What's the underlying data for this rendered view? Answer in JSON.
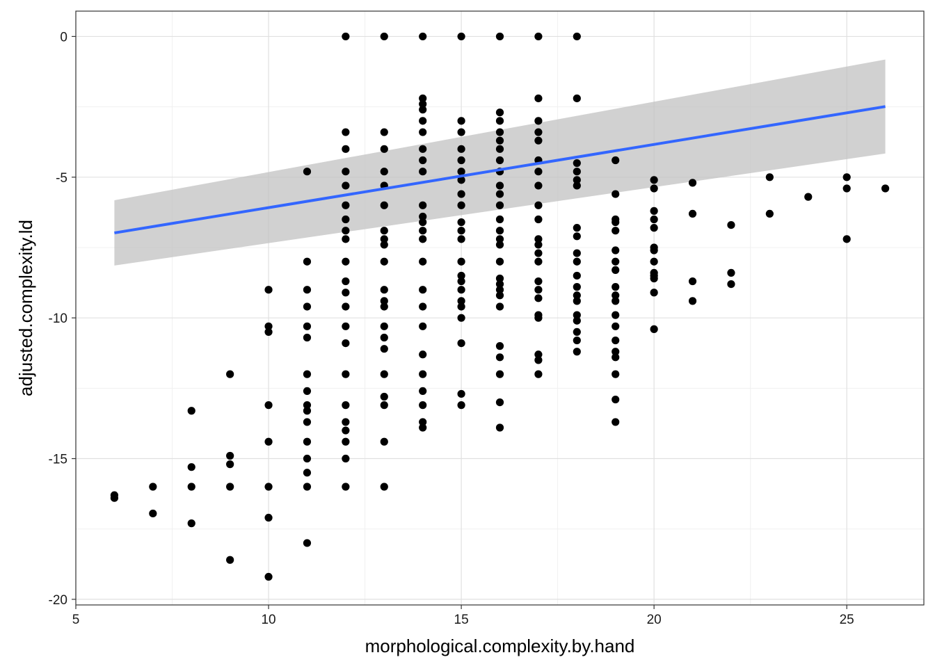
{
  "chart_data": {
    "type": "scatter",
    "title": "",
    "xlabel": "morphological.complexity.by.hand",
    "ylabel": "adjusted.complexity.ld",
    "xlim": [
      5,
      27
    ],
    "ylim": [
      -20.2,
      0.9
    ],
    "x_ticks": [
      5,
      10,
      15,
      20,
      25
    ],
    "x_tick_labels": [
      "5",
      "10",
      "15",
      "20",
      "25"
    ],
    "y_ticks": [
      0,
      -5,
      -10,
      -15,
      -20
    ],
    "y_tick_labels": [
      "0",
      "-5",
      "-10",
      "-15",
      "-20"
    ],
    "grid": true,
    "theme": "bw",
    "colors": {
      "points": "#000000",
      "fit_line": "#3366ff",
      "confidence_band": "#bfbfbf",
      "grid_major": "#e0e0e0",
      "grid_minor": "#f0f0f0",
      "panel_border": "#333333"
    },
    "points": [
      {
        "x": 6,
        "y": -16.3
      },
      {
        "x": 6,
        "y": -16.4
      },
      {
        "x": 7,
        "y": -16.0
      },
      {
        "x": 7,
        "y": -16.95
      },
      {
        "x": 8,
        "y": -13.3
      },
      {
        "x": 8,
        "y": -15.3
      },
      {
        "x": 8,
        "y": -16.0
      },
      {
        "x": 8,
        "y": -17.3
      },
      {
        "x": 9,
        "y": -12.0
      },
      {
        "x": 9,
        "y": -14.9
      },
      {
        "x": 9,
        "y": -15.2
      },
      {
        "x": 9,
        "y": -16.0
      },
      {
        "x": 9,
        "y": -18.6
      },
      {
        "x": 10,
        "y": -9.0
      },
      {
        "x": 10,
        "y": -10.3
      },
      {
        "x": 10,
        "y": -10.5
      },
      {
        "x": 10,
        "y": -13.1
      },
      {
        "x": 10,
        "y": -14.4
      },
      {
        "x": 10,
        "y": -16.0
      },
      {
        "x": 10,
        "y": -17.1
      },
      {
        "x": 10,
        "y": -19.2
      },
      {
        "x": 11,
        "y": -4.8
      },
      {
        "x": 11,
        "y": -8.0
      },
      {
        "x": 11,
        "y": -9.0
      },
      {
        "x": 11,
        "y": -9.6
      },
      {
        "x": 11,
        "y": -10.3
      },
      {
        "x": 11,
        "y": -10.7
      },
      {
        "x": 11,
        "y": -12.0
      },
      {
        "x": 11,
        "y": -12.6
      },
      {
        "x": 11,
        "y": -13.1
      },
      {
        "x": 11,
        "y": -13.3
      },
      {
        "x": 11,
        "y": -13.7
      },
      {
        "x": 11,
        "y": -14.4
      },
      {
        "x": 11,
        "y": -15.0
      },
      {
        "x": 11,
        "y": -15.5
      },
      {
        "x": 11,
        "y": -16.0
      },
      {
        "x": 11,
        "y": -18.0
      },
      {
        "x": 12,
        "y": 0
      },
      {
        "x": 12,
        "y": -3.4
      },
      {
        "x": 12,
        "y": -4.0
      },
      {
        "x": 12,
        "y": -4.8
      },
      {
        "x": 12,
        "y": -5.3
      },
      {
        "x": 12,
        "y": -6.0
      },
      {
        "x": 12,
        "y": -6.5
      },
      {
        "x": 12,
        "y": -6.9
      },
      {
        "x": 12,
        "y": -7.2
      },
      {
        "x": 12,
        "y": -8.0
      },
      {
        "x": 12,
        "y": -8.7
      },
      {
        "x": 12,
        "y": -9.1
      },
      {
        "x": 12,
        "y": -9.6
      },
      {
        "x": 12,
        "y": -10.3
      },
      {
        "x": 12,
        "y": -10.9
      },
      {
        "x": 12,
        "y": -12.0
      },
      {
        "x": 12,
        "y": -13.1
      },
      {
        "x": 12,
        "y": -13.7
      },
      {
        "x": 12,
        "y": -14.0
      },
      {
        "x": 12,
        "y": -14.4
      },
      {
        "x": 12,
        "y": -15.0
      },
      {
        "x": 12,
        "y": -16.0
      },
      {
        "x": 13,
        "y": 0
      },
      {
        "x": 13,
        "y": -3.4
      },
      {
        "x": 13,
        "y": -4.0
      },
      {
        "x": 13,
        "y": -4.8
      },
      {
        "x": 13,
        "y": -5.3
      },
      {
        "x": 13,
        "y": -6.0
      },
      {
        "x": 13,
        "y": -6.9
      },
      {
        "x": 13,
        "y": -7.2
      },
      {
        "x": 13,
        "y": -7.4
      },
      {
        "x": 13,
        "y": -8.0
      },
      {
        "x": 13,
        "y": -9.0
      },
      {
        "x": 13,
        "y": -9.4
      },
      {
        "x": 13,
        "y": -9.6
      },
      {
        "x": 13,
        "y": -10.3
      },
      {
        "x": 13,
        "y": -10.7
      },
      {
        "x": 13,
        "y": -11.1
      },
      {
        "x": 13,
        "y": -12.0
      },
      {
        "x": 13,
        "y": -12.8
      },
      {
        "x": 13,
        "y": -13.1
      },
      {
        "x": 13,
        "y": -14.4
      },
      {
        "x": 13,
        "y": -16.0
      },
      {
        "x": 14,
        "y": 0
      },
      {
        "x": 14,
        "y": -2.2
      },
      {
        "x": 14,
        "y": -2.4
      },
      {
        "x": 14,
        "y": -2.6
      },
      {
        "x": 14,
        "y": -3.0
      },
      {
        "x": 14,
        "y": -3.4
      },
      {
        "x": 14,
        "y": -4.0
      },
      {
        "x": 14,
        "y": -4.4
      },
      {
        "x": 14,
        "y": -4.8
      },
      {
        "x": 14,
        "y": -6.0
      },
      {
        "x": 14,
        "y": -6.4
      },
      {
        "x": 14,
        "y": -6.6
      },
      {
        "x": 14,
        "y": -6.9
      },
      {
        "x": 14,
        "y": -7.2
      },
      {
        "x": 14,
        "y": -8.0
      },
      {
        "x": 14,
        "y": -9.0
      },
      {
        "x": 14,
        "y": -9.6
      },
      {
        "x": 14,
        "y": -10.3
      },
      {
        "x": 14,
        "y": -11.3
      },
      {
        "x": 14,
        "y": -12.0
      },
      {
        "x": 14,
        "y": -12.6
      },
      {
        "x": 14,
        "y": -13.1
      },
      {
        "x": 14,
        "y": -13.7
      },
      {
        "x": 14,
        "y": -13.9
      },
      {
        "x": 15,
        "y": 0
      },
      {
        "x": 15,
        "y": -3.0
      },
      {
        "x": 15,
        "y": -3.4
      },
      {
        "x": 15,
        "y": -4.0
      },
      {
        "x": 15,
        "y": -4.4
      },
      {
        "x": 15,
        "y": -4.8
      },
      {
        "x": 15,
        "y": -5.1
      },
      {
        "x": 15,
        "y": -5.6
      },
      {
        "x": 15,
        "y": -6.0
      },
      {
        "x": 15,
        "y": -6.6
      },
      {
        "x": 15,
        "y": -6.9
      },
      {
        "x": 15,
        "y": -7.2
      },
      {
        "x": 15,
        "y": -8.0
      },
      {
        "x": 15,
        "y": -8.5
      },
      {
        "x": 15,
        "y": -8.7
      },
      {
        "x": 15,
        "y": -9.0
      },
      {
        "x": 15,
        "y": -9.4
      },
      {
        "x": 15,
        "y": -9.6
      },
      {
        "x": 15,
        "y": -10.0
      },
      {
        "x": 15,
        "y": -10.9
      },
      {
        "x": 15,
        "y": -12.7
      },
      {
        "x": 15,
        "y": -13.1
      },
      {
        "x": 16,
        "y": 0
      },
      {
        "x": 16,
        "y": -2.7
      },
      {
        "x": 16,
        "y": -3.0
      },
      {
        "x": 16,
        "y": -3.4
      },
      {
        "x": 16,
        "y": -3.7
      },
      {
        "x": 16,
        "y": -4.0
      },
      {
        "x": 16,
        "y": -4.4
      },
      {
        "x": 16,
        "y": -4.8
      },
      {
        "x": 16,
        "y": -5.3
      },
      {
        "x": 16,
        "y": -5.6
      },
      {
        "x": 16,
        "y": -6.0
      },
      {
        "x": 16,
        "y": -6.5
      },
      {
        "x": 16,
        "y": -6.9
      },
      {
        "x": 16,
        "y": -7.2
      },
      {
        "x": 16,
        "y": -7.4
      },
      {
        "x": 16,
        "y": -8.0
      },
      {
        "x": 16,
        "y": -8.6
      },
      {
        "x": 16,
        "y": -8.8
      },
      {
        "x": 16,
        "y": -9.0
      },
      {
        "x": 16,
        "y": -9.2
      },
      {
        "x": 16,
        "y": -9.6
      },
      {
        "x": 16,
        "y": -11.0
      },
      {
        "x": 16,
        "y": -11.4
      },
      {
        "x": 16,
        "y": -12.0
      },
      {
        "x": 16,
        "y": -13.0
      },
      {
        "x": 16,
        "y": -13.9
      },
      {
        "x": 17,
        "y": 0
      },
      {
        "x": 17,
        "y": -2.2
      },
      {
        "x": 17,
        "y": -3.0
      },
      {
        "x": 17,
        "y": -3.4
      },
      {
        "x": 17,
        "y": -3.7
      },
      {
        "x": 17,
        "y": -4.4
      },
      {
        "x": 17,
        "y": -4.8
      },
      {
        "x": 17,
        "y": -5.3
      },
      {
        "x": 17,
        "y": -6.0
      },
      {
        "x": 17,
        "y": -6.5
      },
      {
        "x": 17,
        "y": -7.2
      },
      {
        "x": 17,
        "y": -7.4
      },
      {
        "x": 17,
        "y": -7.7
      },
      {
        "x": 17,
        "y": -8.0
      },
      {
        "x": 17,
        "y": -8.7
      },
      {
        "x": 17,
        "y": -9.0
      },
      {
        "x": 17,
        "y": -9.3
      },
      {
        "x": 17,
        "y": -9.9
      },
      {
        "x": 17,
        "y": -10.0
      },
      {
        "x": 17,
        "y": -11.3
      },
      {
        "x": 17,
        "y": -11.5
      },
      {
        "x": 17,
        "y": -12.0
      },
      {
        "x": 18,
        "y": 0
      },
      {
        "x": 18,
        "y": -2.2
      },
      {
        "x": 18,
        "y": -4.5
      },
      {
        "x": 18,
        "y": -4.8
      },
      {
        "x": 18,
        "y": -5.1
      },
      {
        "x": 18,
        "y": -5.3
      },
      {
        "x": 18,
        "y": -6.8
      },
      {
        "x": 18,
        "y": -7.1
      },
      {
        "x": 18,
        "y": -7.7
      },
      {
        "x": 18,
        "y": -8.0
      },
      {
        "x": 18,
        "y": -8.5
      },
      {
        "x": 18,
        "y": -8.9
      },
      {
        "x": 18,
        "y": -9.2
      },
      {
        "x": 18,
        "y": -9.4
      },
      {
        "x": 18,
        "y": -9.9
      },
      {
        "x": 18,
        "y": -10.1
      },
      {
        "x": 18,
        "y": -10.5
      },
      {
        "x": 18,
        "y": -10.8
      },
      {
        "x": 18,
        "y": -11.2
      },
      {
        "x": 19,
        "y": -4.4
      },
      {
        "x": 19,
        "y": -5.6
      },
      {
        "x": 19,
        "y": -6.5
      },
      {
        "x": 19,
        "y": -6.6
      },
      {
        "x": 19,
        "y": -6.9
      },
      {
        "x": 19,
        "y": -7.6
      },
      {
        "x": 19,
        "y": -8.0
      },
      {
        "x": 19,
        "y": -8.3
      },
      {
        "x": 19,
        "y": -8.9
      },
      {
        "x": 19,
        "y": -9.2
      },
      {
        "x": 19,
        "y": -9.4
      },
      {
        "x": 19,
        "y": -9.9
      },
      {
        "x": 19,
        "y": -10.3
      },
      {
        "x": 19,
        "y": -10.8
      },
      {
        "x": 19,
        "y": -11.2
      },
      {
        "x": 19,
        "y": -11.4
      },
      {
        "x": 19,
        "y": -12.0
      },
      {
        "x": 19,
        "y": -12.9
      },
      {
        "x": 19,
        "y": -13.7
      },
      {
        "x": 20,
        "y": -5.1
      },
      {
        "x": 20,
        "y": -5.4
      },
      {
        "x": 20,
        "y": -6.2
      },
      {
        "x": 20,
        "y": -6.5
      },
      {
        "x": 20,
        "y": -6.8
      },
      {
        "x": 20,
        "y": -7.5
      },
      {
        "x": 20,
        "y": -7.6
      },
      {
        "x": 20,
        "y": -8.0
      },
      {
        "x": 20,
        "y": -8.4
      },
      {
        "x": 20,
        "y": -8.5
      },
      {
        "x": 20,
        "y": -8.6
      },
      {
        "x": 20,
        "y": -9.1
      },
      {
        "x": 20,
        "y": -10.4
      },
      {
        "x": 21,
        "y": -5.2
      },
      {
        "x": 21,
        "y": -6.3
      },
      {
        "x": 21,
        "y": -8.7
      },
      {
        "x": 21,
        "y": -9.4
      },
      {
        "x": 22,
        "y": -6.7
      },
      {
        "x": 22,
        "y": -8.4
      },
      {
        "x": 22,
        "y": -8.8
      },
      {
        "x": 23,
        "y": -5.0
      },
      {
        "x": 23,
        "y": -6.3
      },
      {
        "x": 24,
        "y": -5.7
      },
      {
        "x": 25,
        "y": -5.0
      },
      {
        "x": 25,
        "y": -5.4
      },
      {
        "x": 25,
        "y": -7.2
      },
      {
        "x": 26,
        "y": -5.4
      }
    ],
    "fit": {
      "method": "lm",
      "x": [
        6,
        26
      ],
      "y": [
        -6.98,
        -2.49
      ],
      "ci_upper": [
        -5.82,
        -0.82
      ],
      "ci_lower": [
        -8.14,
        -4.16
      ]
    }
  }
}
